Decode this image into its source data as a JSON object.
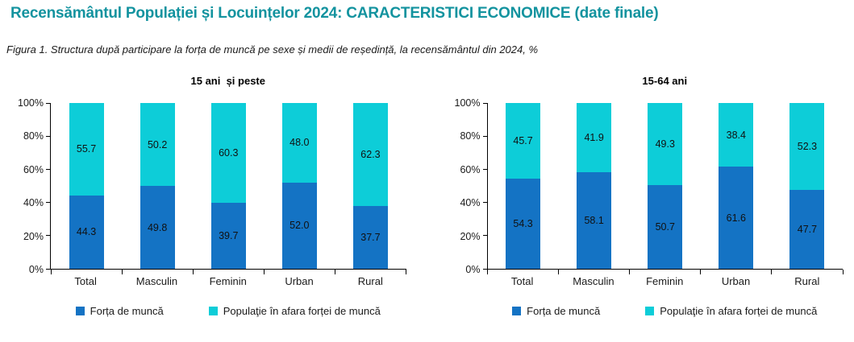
{
  "page_title": "Recensământul Populației și Locuințelor 2024: CARACTERISTICI ECONOMICE (date finale)",
  "figure_caption": "Figura 1. Structura după participare la forța de muncă pe sexe și medii de reședință, la recensământul din 2024, %",
  "colors": {
    "title_teal": "#13939F",
    "labor_force_blue": "#1473C4",
    "outside_labor_force_cyan": "#0DCDD8",
    "axis_black": "#000000",
    "label_text": "#111111"
  },
  "chart_data": [
    {
      "type": "bar",
      "subtype": "stacked-100-percent",
      "title": "15 ani  și peste",
      "categories": [
        "Total",
        "Masculin",
        "Feminin",
        "Urban",
        "Rural"
      ],
      "series": [
        {
          "name": "Forța de muncă",
          "color": "#1473C4",
          "values": [
            "44.3",
            "49.8",
            "39.7",
            "52.0",
            "37.7"
          ]
        },
        {
          "name": "Populaţie în afara forței de muncă",
          "color": "#0DCDD8",
          "values": [
            "55.7",
            "50.2",
            "60.3",
            "48.0",
            "62.3"
          ]
        }
      ],
      "y_ticks": [
        "0%",
        "20%",
        "40%",
        "60%",
        "80%",
        "100%"
      ],
      "ylim": [
        0,
        100
      ],
      "grid": false,
      "legend_position": "bottom"
    },
    {
      "type": "bar",
      "subtype": "stacked-100-percent",
      "title": "15-64 ani",
      "categories": [
        "Total",
        "Masculin",
        "Feminin",
        "Urban",
        "Rural"
      ],
      "series": [
        {
          "name": "Forța de muncă",
          "color": "#1473C4",
          "values": [
            "54.3",
            "58.1",
            "50.7",
            "61.6",
            "47.7"
          ]
        },
        {
          "name": "Populaţie în afara forței de muncă",
          "color": "#0DCDD8",
          "values": [
            "45.7",
            "41.9",
            "49.3",
            "38.4",
            "52.3"
          ]
        }
      ],
      "y_ticks": [
        "0%",
        "20%",
        "40%",
        "60%",
        "80%",
        "100%"
      ],
      "ylim": [
        0,
        100
      ],
      "grid": false,
      "legend_position": "bottom"
    }
  ]
}
